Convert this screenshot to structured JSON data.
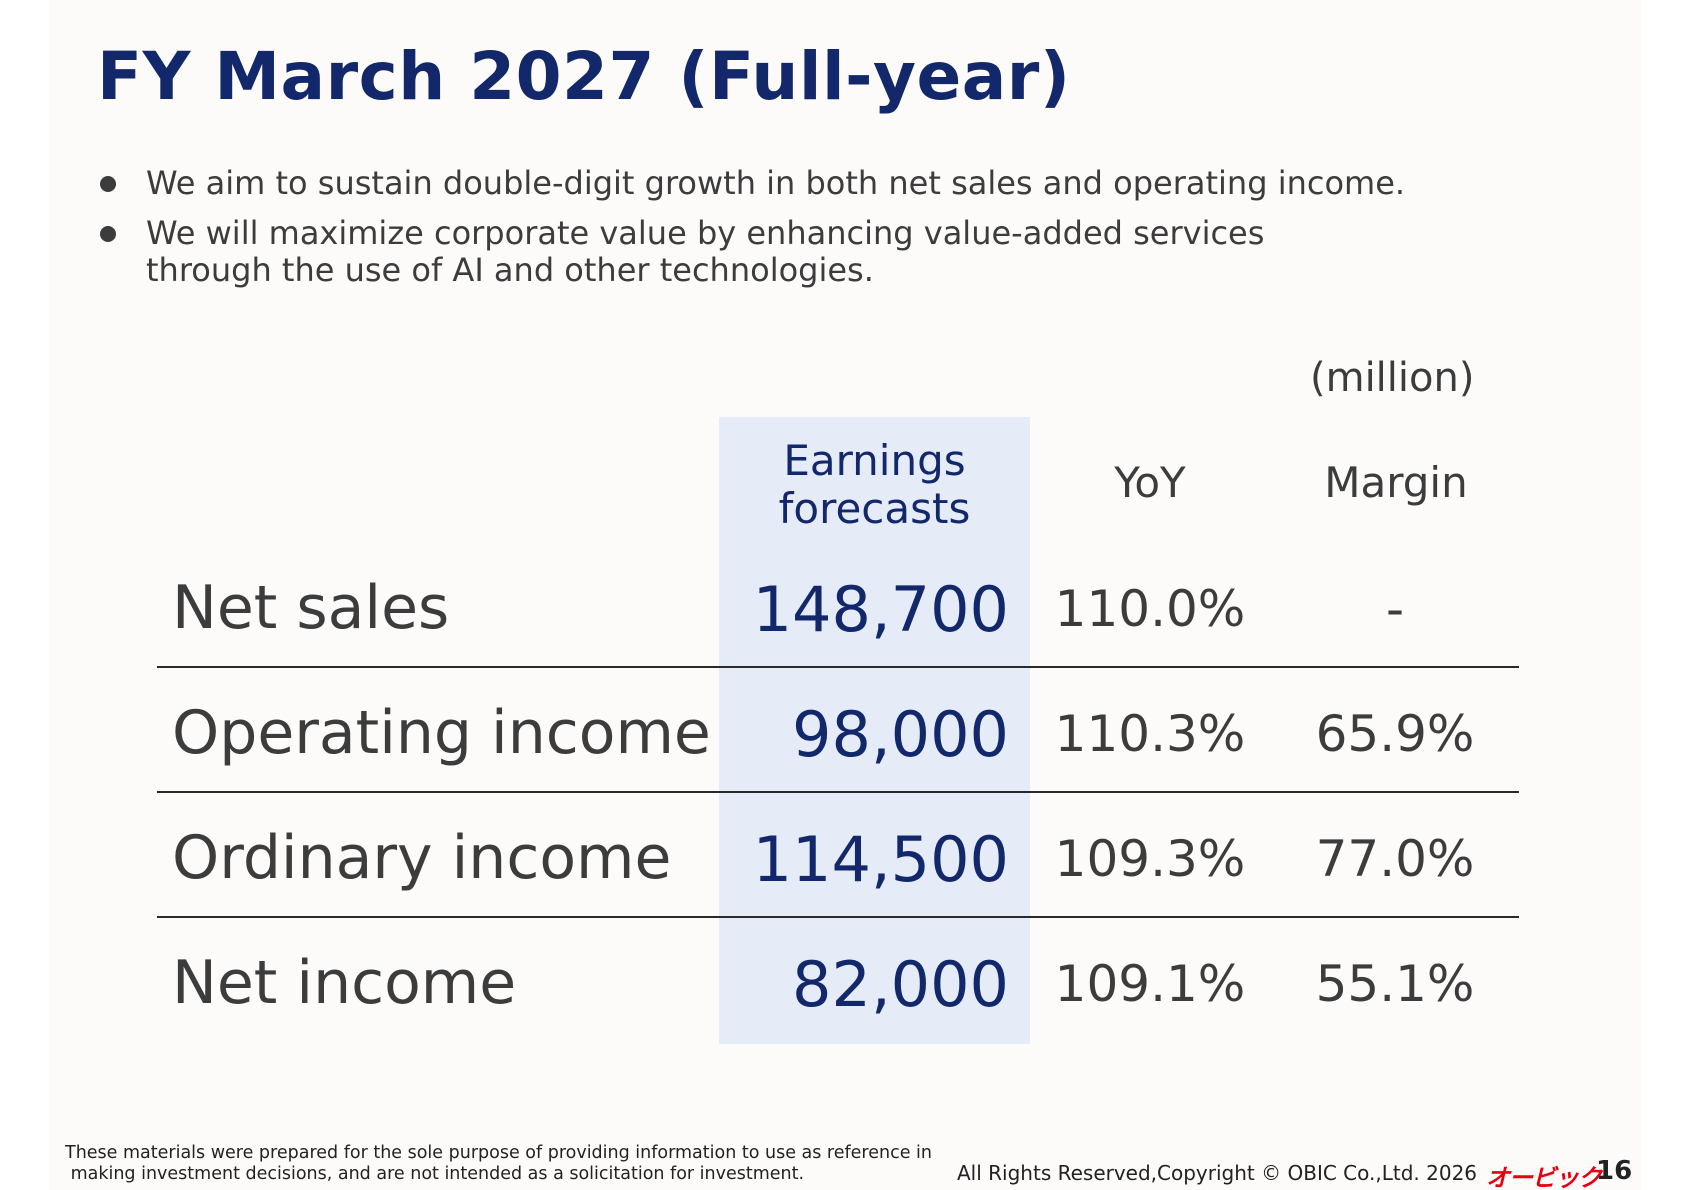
{
  "title": "FY March 2027 (Full-year)",
  "bullets": [
    "We aim to sustain double-digit growth in both net sales and operating income.",
    "We will maximize corporate value by enhancing value-added services through the use of AI and other technologies."
  ],
  "bullet_lines": {
    "b2_line1": "We will maximize corporate value by enhancing value-added services",
    "b2_line2": "through the use of AI and other technologies."
  },
  "unit": "(million)",
  "columns": {
    "forecast_line1": "Earnings",
    "forecast_line2": "forecasts",
    "yoy": "YoY",
    "margin": "Margin"
  },
  "rows": [
    {
      "label": "Net sales",
      "forecast": "148,700",
      "yoy": "110.0%",
      "margin": "-"
    },
    {
      "label": "Operating income",
      "forecast": "98,000",
      "yoy": "110.3%",
      "margin": "65.9%"
    },
    {
      "label": "Ordinary income",
      "forecast": "114,500",
      "yoy": "109.3%",
      "margin": "77.0%"
    },
    {
      "label": "Net income",
      "forecast": "82,000",
      "yoy": "109.1%",
      "margin": "55.1%"
    }
  ],
  "footer": {
    "disclaimer_line1": "These materials were prepared for the sole purpose of providing information to use as reference in",
    "disclaimer_line2": "making investment decisions, and are not intended as a solicitation for investment.",
    "copyright": "All Rights Reserved,Copyright © OBIC Co.,Ltd. 2026",
    "logo_text": "オービック",
    "page_number": "16"
  },
  "colors": {
    "title": "#12286a",
    "highlight": "#e5ecf7",
    "logo": "#e60012"
  }
}
